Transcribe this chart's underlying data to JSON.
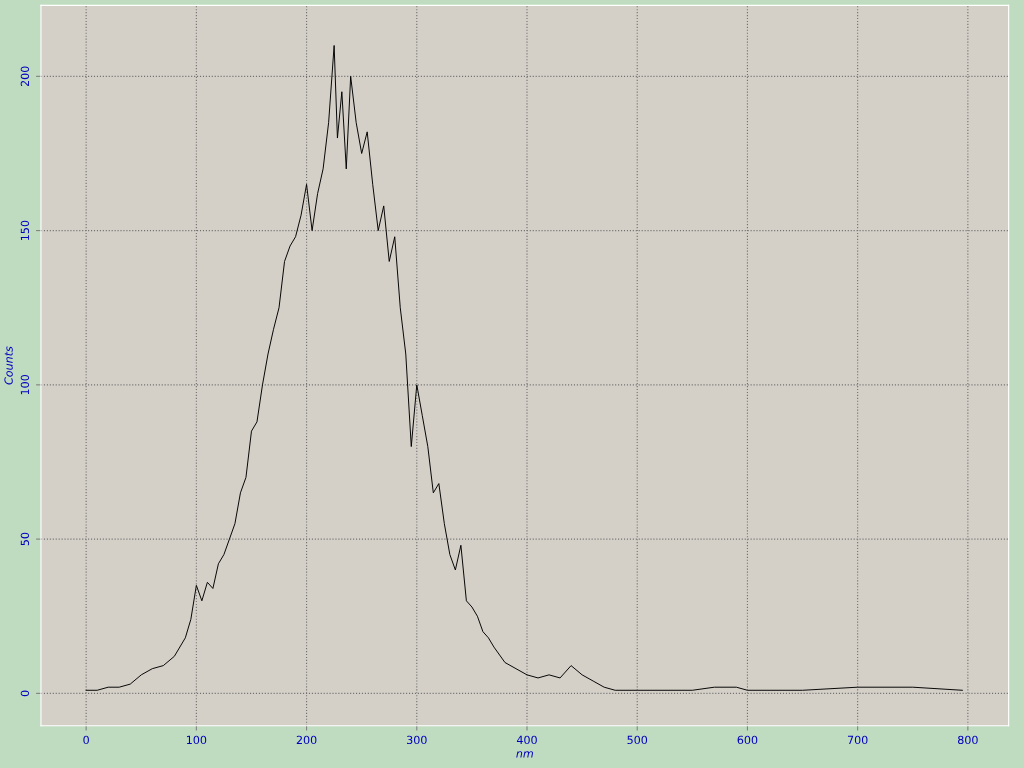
{
  "chart_data": {
    "type": "line",
    "xlabel": "nm",
    "ylabel": "Counts",
    "xlim": [
      -41,
      837
    ],
    "ylim": [
      -10.5,
      223
    ],
    "xticks": [
      0,
      100,
      200,
      300,
      400,
      500,
      600,
      700,
      800
    ],
    "yticks": [
      0,
      50,
      100,
      150,
      200
    ],
    "grid": true,
    "line_style": "solid",
    "marker": "none",
    "series": [
      {
        "color": "#000000",
        "x": [
          0,
          10,
          20,
          30,
          40,
          50,
          60,
          70,
          80,
          90,
          95,
          100,
          105,
          110,
          115,
          120,
          125,
          130,
          135,
          140,
          145,
          150,
          155,
          160,
          165,
          170,
          175,
          180,
          185,
          190,
          195,
          200,
          205,
          210,
          215,
          220,
          225,
          228,
          232,
          236,
          240,
          245,
          250,
          255,
          260,
          265,
          270,
          275,
          280,
          285,
          290,
          295,
          300,
          305,
          310,
          315,
          320,
          325,
          330,
          335,
          340,
          345,
          350,
          355,
          360,
          365,
          370,
          380,
          390,
          400,
          410,
          420,
          430,
          440,
          450,
          460,
          470,
          480,
          500,
          550,
          570,
          590,
          600,
          650,
          700,
          750,
          795
        ],
        "values": [
          1,
          1,
          2,
          2,
          3,
          6,
          8,
          9,
          12,
          18,
          24,
          35,
          30,
          36,
          34,
          42,
          45,
          50,
          55,
          65,
          70,
          85,
          88,
          100,
          110,
          118,
          125,
          140,
          145,
          148,
          155,
          165,
          150,
          162,
          170,
          185,
          210,
          180,
          195,
          170,
          200,
          185,
          175,
          182,
          165,
          150,
          158,
          140,
          148,
          125,
          110,
          80,
          100,
          90,
          80,
          65,
          68,
          55,
          45,
          40,
          48,
          30,
          28,
          25,
          20,
          18,
          15,
          10,
          8,
          6,
          5,
          6,
          5,
          9,
          6,
          4,
          2,
          1,
          1,
          1,
          2,
          2,
          1,
          1,
          2,
          2,
          1
        ]
      }
    ]
  }
}
